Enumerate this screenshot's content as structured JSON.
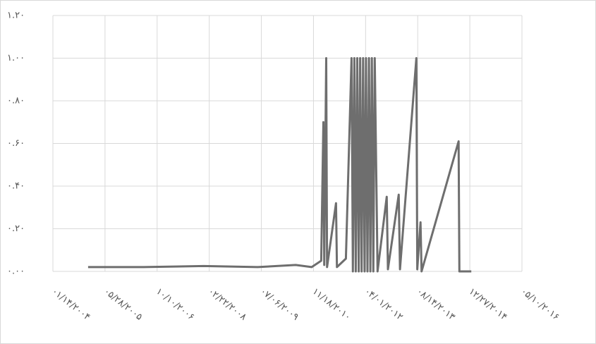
{
  "chart_data": {
    "type": "line",
    "color": "#6e6e6e",
    "grid": true,
    "x": [
      "2004-12-17",
      "2006-06-01",
      "2008-01-01",
      "2009-06-01",
      "2010-06-01",
      "2010-11-01",
      "2011-01-31",
      "2011-02-21",
      "2011-03-01",
      "2011-03-20",
      "2011-03-28",
      "2011-06-22",
      "2011-07-01",
      "2011-09-25",
      "2011-11-18",
      "2011-12-01",
      "2011-12-15",
      "2011-12-29",
      "2012-01-12",
      "2012-01-26",
      "2012-02-09",
      "2012-02-23",
      "2012-03-08",
      "2012-03-22",
      "2012-04-05",
      "2012-04-19",
      "2012-05-03",
      "2012-05-17",
      "2012-05-31",
      "2012-06-14",
      "2012-06-28",
      "2012-07-25",
      "2012-10-21",
      "2012-11-01",
      "2013-02-13",
      "2013-02-25",
      "2013-08-01",
      "2013-08-10",
      "2013-09-10",
      "2013-09-20",
      "2014-09-10",
      "2014-09-18",
      "2015-01-10"
    ],
    "values": [
      0.02,
      0.02,
      0.025,
      0.02,
      0.03,
      0.02,
      0.05,
      0.7,
      0.03,
      1.0,
      0.02,
      0.32,
      0.02,
      0.06,
      1.0,
      0.0,
      1.0,
      0.0,
      1.0,
      0.0,
      1.0,
      0.0,
      1.0,
      0.0,
      1.0,
      0.0,
      1.0,
      0.0,
      1.0,
      0.0,
      1.0,
      0.0,
      0.35,
      0.01,
      0.36,
      0.01,
      1.0,
      0.01,
      0.23,
      0.0,
      0.61,
      0.0,
      0.0
    ],
    "xlim": [
      "2004-01-14",
      "2016-05-10"
    ],
    "xticks": [
      {
        "value": "2004-01-14",
        "label": "۰۱/۱۴/۲۰۰۴"
      },
      {
        "value": "2005-05-28",
        "label": "۰۵/۲۸/۲۰۰۵"
      },
      {
        "value": "2006-10-10",
        "label": "۱۰/۱۰/۲۰۰۶"
      },
      {
        "value": "2008-02-22",
        "label": "۰۲/۲۲/۲۰۰۸"
      },
      {
        "value": "2009-07-06",
        "label": "۰۷/۰۶/۲۰۰۹"
      },
      {
        "value": "2010-11-18",
        "label": "۱۱/۱۸/۲۰۱۰"
      },
      {
        "value": "2012-04-01",
        "label": "۰۴/۰۱/۲۰۱۲"
      },
      {
        "value": "2013-08-14",
        "label": "۰۸/۱۴/۲۰۱۳"
      },
      {
        "value": "2014-12-27",
        "label": "۱۲/۲۷/۲۰۱۴"
      },
      {
        "value": "2016-05-10",
        "label": "۰۵/۱۰/۲۰۱۶"
      }
    ],
    "ylim": [
      0,
      1.2
    ],
    "yticks": [
      {
        "value": 0,
        "label": "۰.۰۰"
      },
      {
        "value": 0.2,
        "label": "۰.۲۰"
      },
      {
        "value": 0.4,
        "label": "۰.۴۰"
      },
      {
        "value": 0.6,
        "label": "۰.۶۰"
      },
      {
        "value": 0.8,
        "label": "۰.۸۰"
      },
      {
        "value": 1.0,
        "label": "۱.۰۰"
      },
      {
        "value": 1.2,
        "label": "۱.۲۰"
      }
    ]
  }
}
